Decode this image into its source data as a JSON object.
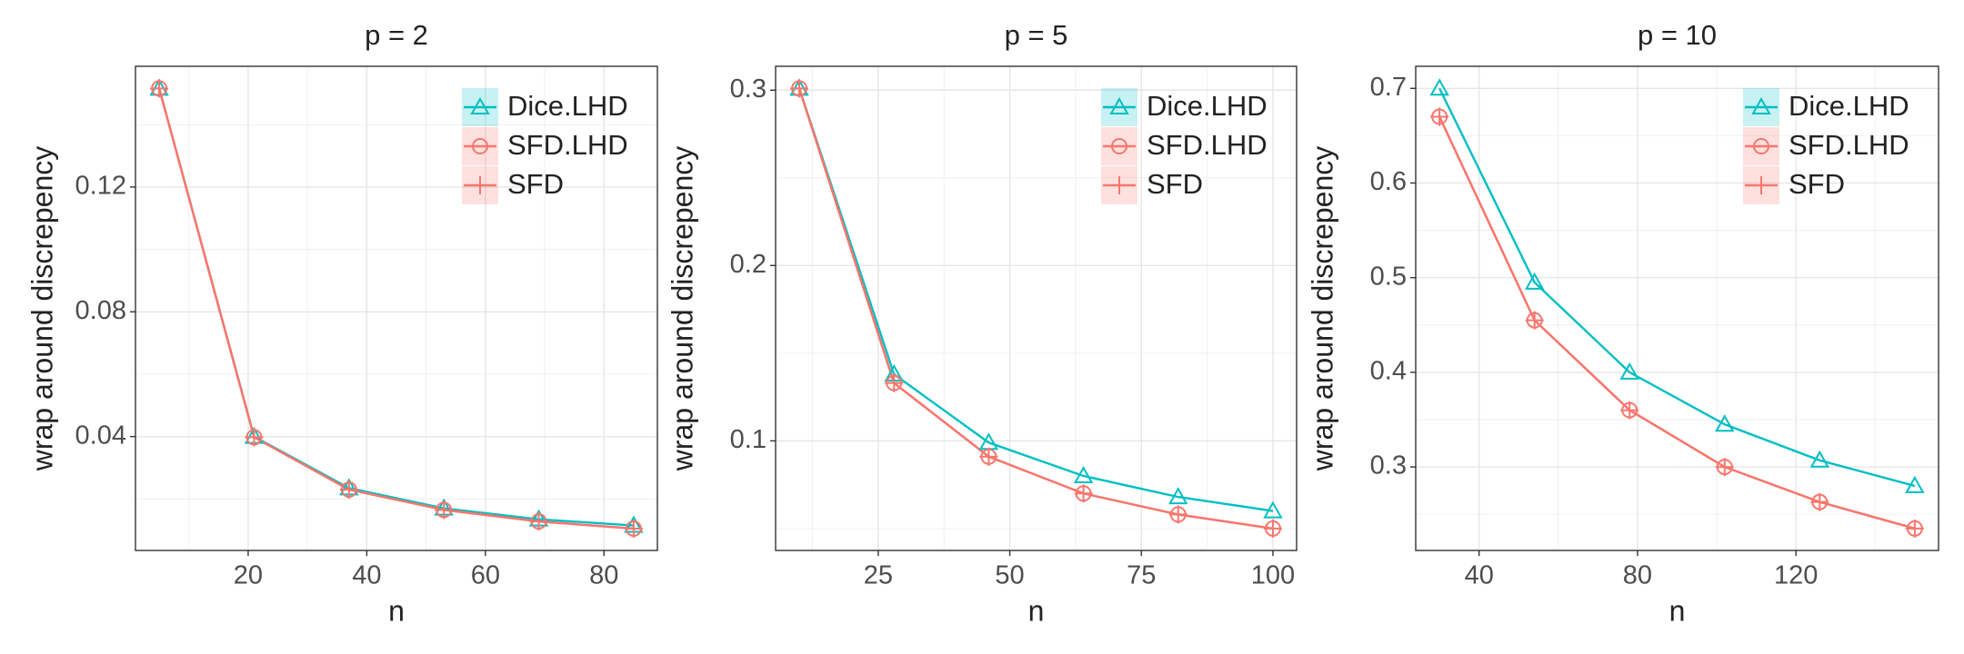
{
  "chart_data": [
    {
      "type": "line",
      "title": "p = 2",
      "x_label": "n",
      "y_label": "wrap around discrepency",
      "x": [
        5,
        21,
        37,
        53,
        69,
        85
      ],
      "series": [
        {
          "name": "Dice.LHD",
          "color": "#00BFC4",
          "marker": "triangle",
          "values": [
            0.1516,
            0.04,
            0.0235,
            0.017,
            0.0135,
            0.0115
          ]
        },
        {
          "name": "SFD.LHD",
          "color": "#F8766D",
          "marker": "circle",
          "values": [
            0.1516,
            0.0398,
            0.023,
            0.0165,
            0.0128,
            0.0105
          ]
        },
        {
          "name": "SFD",
          "color": "#F8766D",
          "marker": "plus",
          "values": [
            0.1516,
            0.0398,
            0.023,
            0.0165,
            0.0128,
            0.0105
          ]
        }
      ],
      "xlim": [
        1,
        89
      ],
      "ylim": [
        0.0035,
        0.1587
      ],
      "xticks": [
        20,
        40,
        60,
        80
      ],
      "yticks": [
        0.04,
        0.08,
        0.12
      ],
      "grid": true,
      "legend": "top-right"
    },
    {
      "type": "line",
      "title": "p = 5",
      "x_label": "n",
      "y_label": "wrap around discrepency",
      "x": [
        10,
        28,
        46,
        64,
        82,
        100
      ],
      "series": [
        {
          "name": "Dice.LHD",
          "color": "#00BFC4",
          "marker": "triangle",
          "values": [
            0.301,
            0.138,
            0.099,
            0.08,
            0.068,
            0.06
          ]
        },
        {
          "name": "SFD.LHD",
          "color": "#F8766D",
          "marker": "circle",
          "values": [
            0.301,
            0.133,
            0.091,
            0.07,
            0.058,
            0.05
          ]
        },
        {
          "name": "SFD",
          "color": "#F8766D",
          "marker": "plus",
          "values": [
            0.301,
            0.133,
            0.091,
            0.07,
            0.058,
            0.05
          ]
        }
      ],
      "xlim": [
        5.5,
        104.5
      ],
      "ylim": [
        0.0375,
        0.3136
      ],
      "xticks": [
        25,
        50,
        75,
        100
      ],
      "yticks": [
        0.1,
        0.2,
        0.3
      ],
      "grid": true,
      "legend": "top-right"
    },
    {
      "type": "line",
      "title": "p = 10",
      "x_label": "n",
      "y_label": "wrap around discrepency",
      "x": [
        30,
        54,
        78,
        102,
        126,
        150
      ],
      "series": [
        {
          "name": "Dice.LHD",
          "color": "#00BFC4",
          "marker": "triangle",
          "values": [
            0.7,
            0.495,
            0.4,
            0.345,
            0.307,
            0.28
          ]
        },
        {
          "name": "SFD.LHD",
          "color": "#F8766D",
          "marker": "circle",
          "values": [
            0.67,
            0.455,
            0.36,
            0.3,
            0.263,
            0.235
          ]
        },
        {
          "name": "SFD",
          "color": "#F8766D",
          "marker": "plus",
          "values": [
            0.67,
            0.455,
            0.36,
            0.3,
            0.263,
            0.235
          ]
        }
      ],
      "xlim": [
        24,
        156
      ],
      "ylim": [
        0.2118,
        0.7233
      ],
      "xticks": [
        40,
        80,
        120
      ],
      "yticks": [
        0.3,
        0.4,
        0.5,
        0.6,
        0.7
      ],
      "grid": true,
      "legend": "top-right"
    }
  ]
}
